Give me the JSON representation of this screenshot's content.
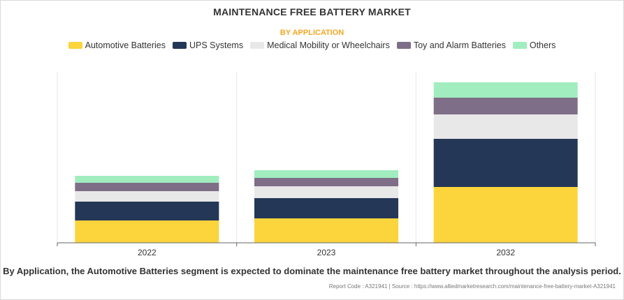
{
  "chart_data": {
    "type": "bar",
    "stacked": true,
    "title": "MAINTENANCE FREE BATTERY MARKET",
    "subtitle": "BY APPLICATION",
    "categories": [
      "2022",
      "2023",
      "2032"
    ],
    "series": [
      {
        "name": "Automotive Batteries",
        "color": "#fcd43c",
        "values": [
          32,
          35,
          80
        ]
      },
      {
        "name": "UPS Systems",
        "color": "#243757",
        "values": [
          27,
          29,
          69
        ]
      },
      {
        "name": "Medical Mobility or Wheelchairs",
        "color": "#e8e8e8",
        "values": [
          15,
          17,
          35
        ]
      },
      {
        "name": "Toy and Alarm Batteries",
        "color": "#7e6e87",
        "values": [
          12,
          12,
          24
        ]
      },
      {
        "name": "Others",
        "color": "#a1edbf",
        "values": [
          10,
          11,
          22
        ]
      }
    ],
    "ylim": [
      0,
      245
    ],
    "grid": "vertical",
    "legend_position": "top-center"
  },
  "caption": "By Application, the Automotive Batteries segment is expected to dominate the maintenance free battery market throughout the analysis period.",
  "footer": "Report Code : A321941  |  Source : https://www.alliedmarketresearch.com/maintenance-free-battery-market-A321941"
}
